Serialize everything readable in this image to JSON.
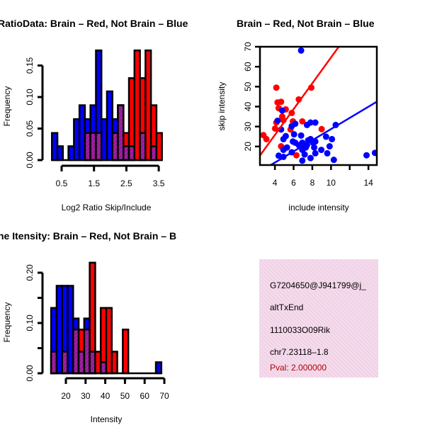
{
  "colors": {
    "red": "#ff0000",
    "blue": "#0000ff",
    "overlap": "#a020a0",
    "pval": "#b00000",
    "box_bg": "#f8d8f0"
  },
  "chart_data": [
    {
      "type": "bar",
      "title": "RatioData: Brain – Red, Not Brain – Blue",
      "xlabel": "Log2 Ratio Skip/Include",
      "ylabel": "Frequency",
      "bin_start": 0.2,
      "bin_width": 0.17,
      "xticks": [
        0.5,
        1.5,
        2.5,
        3.5
      ],
      "xtick_labels": [
        "0.5",
        "1.5",
        "2.5",
        "3.5"
      ],
      "yticks": [
        0,
        0.05,
        0.1,
        0.15
      ],
      "ytick_labels": [
        "0.00",
        "0.05",
        "0.10",
        "0.15"
      ],
      "series": [
        {
          "name": "Not Brain",
          "color": "blue",
          "values": [
            0.043,
            0.022,
            0,
            0.022,
            0.065,
            0.087,
            0.065,
            0.087,
            0.174,
            0.065,
            0.109,
            0.065,
            0.087,
            0.022,
            0.022,
            0,
            0.043,
            0,
            0.022,
            0
          ]
        },
        {
          "name": "Brain",
          "color": "red",
          "values": [
            0,
            0,
            0,
            0,
            0,
            0,
            0.043,
            0.043,
            0.043,
            0,
            0,
            0.043,
            0.087,
            0.043,
            0.13,
            0.174,
            0.13,
            0.174,
            0.087,
            0.043
          ]
        }
      ]
    },
    {
      "type": "scatter",
      "title": "Brain – Red, Not Brain – Blue",
      "xlabel": "include intensity",
      "ylabel": "skip intensity",
      "xlim": [
        2.4,
        14.9
      ],
      "ylim": [
        10.7,
        70
      ],
      "xticks": [
        4,
        6,
        8,
        10,
        12,
        14
      ],
      "xtick_labels": [
        "4",
        "6",
        "8",
        "10",
        "",
        "14"
      ],
      "yticks": [
        20,
        30,
        40,
        50,
        60,
        70
      ],
      "ytick_labels": [
        "20",
        "30",
        "40",
        "50",
        "60",
        "70"
      ],
      "series": [
        {
          "name": "Brain",
          "color": "red",
          "fit": {
            "intercept": -0.07,
            "slope": 6.47
          },
          "points": [
            [
              2.77,
              25.7
            ],
            [
              3.09,
              23.7
            ],
            [
              4.15,
              49.5
            ],
            [
              4.28,
              42.1
            ],
            [
              4.66,
              42.4
            ],
            [
              4.4,
              39.2
            ],
            [
              4.78,
              35
            ],
            [
              5.16,
              38.6
            ],
            [
              4.91,
              33.2
            ],
            [
              4.15,
              32
            ],
            [
              4.02,
              29
            ],
            [
              4.66,
              20.1
            ],
            [
              5.8,
              36.8
            ],
            [
              5.92,
              32.6
            ],
            [
              6.55,
              43.6
            ],
            [
              6.93,
              32.6
            ],
            [
              7.89,
              49.5
            ],
            [
              9.0,
              28.7
            ],
            [
              6.3,
              15.6
            ],
            [
              5.67,
              28.5
            ]
          ]
        },
        {
          "name": "Not Brain",
          "color": "blue",
          "fit": {
            "intercept": 0.74,
            "slope": 2.8
          },
          "points": [
            [
              6.8,
              68.1
            ],
            [
              4.28,
              32.9
            ],
            [
              4.78,
              38
            ],
            [
              4.66,
              28.5
            ],
            [
              4.91,
              23.7
            ],
            [
              5.16,
              25.2
            ],
            [
              5.29,
              19.5
            ],
            [
              4.91,
              18.3
            ],
            [
              4.4,
              15.4
            ],
            [
              4.91,
              14.8
            ],
            [
              5.8,
              30.2
            ],
            [
              6.17,
              31.4
            ],
            [
              6.05,
              26.1
            ],
            [
              5.92,
              22.5
            ],
            [
              6.17,
              21.9
            ],
            [
              5.8,
              17.1
            ],
            [
              6.8,
              25.5
            ],
            [
              6.93,
              21.9
            ],
            [
              6.93,
              18.3
            ],
            [
              6.93,
              12.9
            ],
            [
              7.18,
              16
            ],
            [
              7.3,
              19.5
            ],
            [
              7.43,
              30.8
            ],
            [
              7.81,
              32
            ],
            [
              7.56,
              23.1
            ],
            [
              7.81,
              23.7
            ],
            [
              8.07,
              21.9
            ],
            [
              8.32,
              22.5
            ],
            [
              8.32,
              32
            ],
            [
              8.2,
              19.5
            ],
            [
              8.32,
              16.6
            ],
            [
              7.81,
              14.2
            ],
            [
              8.96,
              18.3
            ],
            [
              9.47,
              24.9
            ],
            [
              9.6,
              16.6
            ],
            [
              9.85,
              20.1
            ],
            [
              10.1,
              23.7
            ],
            [
              10.5,
              30.8
            ],
            [
              10.3,
              13.3
            ],
            [
              13.8,
              15.6
            ],
            [
              14.7,
              16.8
            ],
            [
              7.43,
              20.7
            ],
            [
              6.55,
              20.7
            ]
          ]
        }
      ]
    },
    {
      "type": "bar",
      "title": "ne Itensity: Brain – Red, Not Brain – B",
      "xlabel": "Intensity",
      "ylabel": "Frequency",
      "bin_start": 12.5,
      "bin_width": 2.8,
      "xticks": [
        20,
        30,
        40,
        50,
        60,
        70
      ],
      "xtick_labels": [
        "20",
        "30",
        "40",
        "50",
        "60",
        "70"
      ],
      "yticks": [
        0,
        0.1,
        0.2
      ],
      "ytick_labels": [
        "0.00",
        "0.10",
        "0.20"
      ],
      "yticks_minor": [
        0.05,
        0.15
      ],
      "series": [
        {
          "name": "Not Brain",
          "color": "blue",
          "values": [
            0.13,
            0.174,
            0.174,
            0.174,
            0.109,
            0.043,
            0.109,
            0.043,
            0,
            0.022,
            0,
            0,
            0,
            0,
            0,
            0,
            0,
            0,
            0,
            0.022
          ]
        },
        {
          "name": "Brain",
          "color": "red",
          "values": [
            0.043,
            0,
            0.043,
            0,
            0.087,
            0.087,
            0.087,
            0.22,
            0.043,
            0.13,
            0.13,
            0.043,
            0,
            0.087,
            0,
            0,
            0,
            0,
            0,
            0
          ]
        }
      ]
    }
  ],
  "info_box": {
    "id_line": "G7204650@J941799@j_",
    "event_type": "altTxEnd",
    "gene": "1110033O09Rik",
    "location": "chr7.23118–1.8",
    "pval": "Pval: 2.000000"
  }
}
